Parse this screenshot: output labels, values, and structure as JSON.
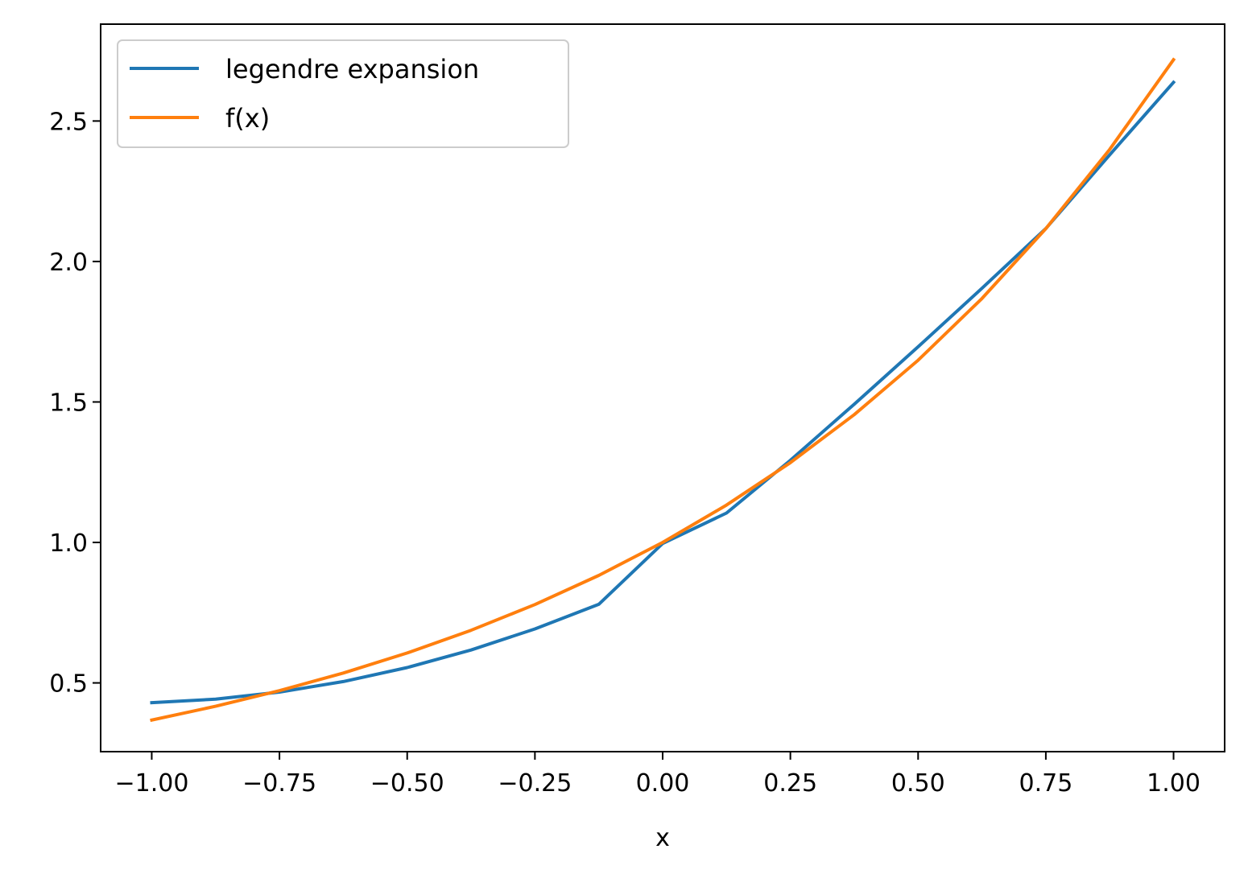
{
  "chart_data": {
    "type": "line",
    "title": "",
    "xlabel": "x",
    "ylabel": "",
    "xlim": [
      -1.1,
      1.1
    ],
    "ylim": [
      0.2553,
      2.8448
    ],
    "grid": false,
    "legend_position": "top-left",
    "x_ticks": [
      -1.0,
      -0.75,
      -0.5,
      -0.25,
      0.0,
      0.25,
      0.5,
      0.75,
      1.0
    ],
    "x_tick_labels": [
      "−1.00",
      "−0.75",
      "−0.50",
      "−0.25",
      "0.00",
      "0.25",
      "0.50",
      "0.75",
      "1.00"
    ],
    "y_ticks": [
      0.5,
      1.0,
      1.5,
      2.0,
      2.5
    ],
    "y_tick_labels": [
      "0.5",
      "1.0",
      "1.5",
      "2.0",
      "2.5"
    ],
    "series": [
      {
        "name": "legendre expansion",
        "color": "#1f77b4",
        "x": [
          -1.0,
          -0.875,
          -0.75,
          -0.625,
          -0.5,
          -0.375,
          -0.25,
          -0.125,
          0.0,
          0.125,
          0.25,
          0.375,
          0.5,
          0.625,
          0.75,
          0.875,
          1.0
        ],
        "y": [
          0.4297,
          0.4422,
          0.4672,
          0.5047,
          0.5547,
          0.6172,
          0.6922,
          0.7797,
          0.9963,
          1.1047,
          1.2922,
          1.4922,
          1.6963,
          1.9047,
          2.1172,
          2.3797,
          2.6378
        ]
      },
      {
        "name": "f(x)",
        "color": "#ff7f0e",
        "x": [
          -1.0,
          -0.875,
          -0.75,
          -0.625,
          -0.5,
          -0.375,
          -0.25,
          -0.125,
          0.0,
          0.125,
          0.25,
          0.375,
          0.5,
          0.625,
          0.75,
          0.875,
          1.0
        ],
        "y": [
          0.3679,
          0.4169,
          0.4724,
          0.5353,
          0.6065,
          0.6873,
          0.7788,
          0.8825,
          1.0,
          1.1331,
          1.284,
          1.455,
          1.6487,
          1.8682,
          2.117,
          2.3989,
          2.7183
        ]
      }
    ]
  }
}
